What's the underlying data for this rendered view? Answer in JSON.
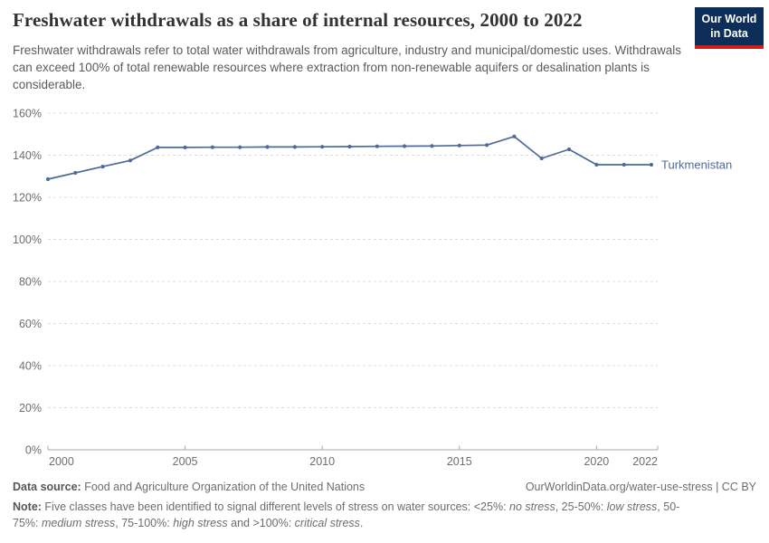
{
  "header": {
    "title": "Freshwater withdrawals as a share of internal resources, 2000 to 2022",
    "subtitle": "Freshwater withdrawals refer to total water withdrawals from agriculture, industry and municipal/domestic uses. Withdrawals can exceed 100% of total renewable resources where extraction from non-renewable aquifers or desalination plants is considerable."
  },
  "logo": {
    "line1": "Our World",
    "line2": "in Data"
  },
  "chart_data": {
    "type": "line",
    "title": "Freshwater withdrawals as a share of internal resources, 2000 to 2022",
    "xlabel": "",
    "ylabel": "",
    "x": [
      2000,
      2001,
      2002,
      2003,
      2004,
      2005,
      2006,
      2007,
      2008,
      2009,
      2010,
      2011,
      2012,
      2013,
      2014,
      2015,
      2016,
      2017,
      2018,
      2019,
      2020,
      2021,
      2022
    ],
    "series": [
      {
        "name": "Turkmenistan",
        "color": "#4c6a9c",
        "values": [
          128.6,
          131.6,
          134.6,
          137.5,
          143.7,
          143.7,
          143.8,
          143.8,
          143.9,
          143.9,
          144.0,
          144.1,
          144.2,
          144.3,
          144.4,
          144.6,
          144.8,
          148.9,
          138.5,
          142.8,
          135.5,
          135.5,
          135.5
        ]
      }
    ],
    "ylim": [
      0,
      160
    ],
    "ytick_step": 20,
    "ytick_suffix": "%",
    "xticks": [
      2000,
      2005,
      2010,
      2015,
      2020,
      2022
    ],
    "grid": "horizontal-dashed",
    "legend": "end-of-line-label",
    "marker": "dot-every-year"
  },
  "footer": {
    "data_source_label": "Data source:",
    "data_source_value": "Food and Agriculture Organization of the United Nations",
    "link": "OurWorldinData.org/water-use-stress | CC BY",
    "note_segments": [
      {
        "t": "Note:",
        "b": true
      },
      {
        "t": " Five classes have been identified to signal different levels of stress on water sources: <25%: "
      },
      {
        "t": "no stress",
        "i": true
      },
      {
        "t": ", 25-50%: "
      },
      {
        "t": "low stress",
        "i": true
      },
      {
        "t": ", 50-75%: "
      },
      {
        "t": "medium stress",
        "i": true
      },
      {
        "t": ", 75-100%: "
      },
      {
        "t": "high stress",
        "i": true
      },
      {
        "t": " and >100%: "
      },
      {
        "t": "critical stress",
        "i": true
      },
      {
        "t": "."
      }
    ]
  },
  "colors": {
    "line": "#4c6a9c",
    "gridline": "#dcdcdc",
    "axis": "#a8a8a8",
    "tick_label": "#6e6e6e",
    "logo_navy": "#0e2e5a",
    "logo_red": "#cb2018"
  }
}
